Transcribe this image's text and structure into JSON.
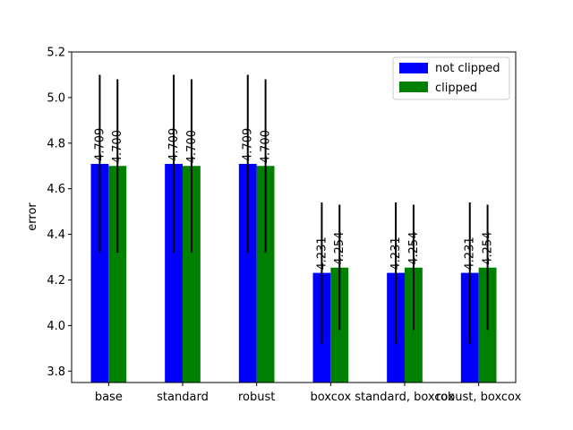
{
  "chart_data": {
    "type": "bar",
    "title": "",
    "xlabel": "",
    "ylabel": "error",
    "ylim": [
      3.75,
      5.2
    ],
    "yticks": [
      "3.8",
      "4.0",
      "4.2",
      "4.4",
      "4.6",
      "4.8",
      "5.0",
      "5.2"
    ],
    "categories": [
      "base",
      "standard",
      "robust",
      "boxcox",
      "standard, boxcox",
      "robust, boxcox"
    ],
    "series": [
      {
        "name": "not clipped",
        "color": "#0000ff",
        "values": [
          4.709,
          4.709,
          4.709,
          4.231,
          4.231,
          4.231
        ],
        "labels": [
          "4.709",
          "4.709",
          "4.709",
          "4.231",
          "4.231",
          "4.231"
        ],
        "error_low": [
          4.32,
          4.32,
          4.32,
          3.92,
          3.92,
          3.92
        ],
        "error_high": [
          5.1,
          5.1,
          5.1,
          4.54,
          4.54,
          4.54
        ]
      },
      {
        "name": "clipped",
        "color": "#008000",
        "values": [
          4.7,
          4.7,
          4.7,
          4.254,
          4.254,
          4.254
        ],
        "labels": [
          "4.700",
          "4.700",
          "4.700",
          "4.254",
          "4.254",
          "4.254"
        ],
        "error_low": [
          4.32,
          4.32,
          4.32,
          3.98,
          3.98,
          3.98
        ],
        "error_high": [
          5.08,
          5.08,
          5.08,
          4.53,
          4.53,
          4.53
        ]
      }
    ],
    "legend_position": "top-right",
    "grid": false
  }
}
